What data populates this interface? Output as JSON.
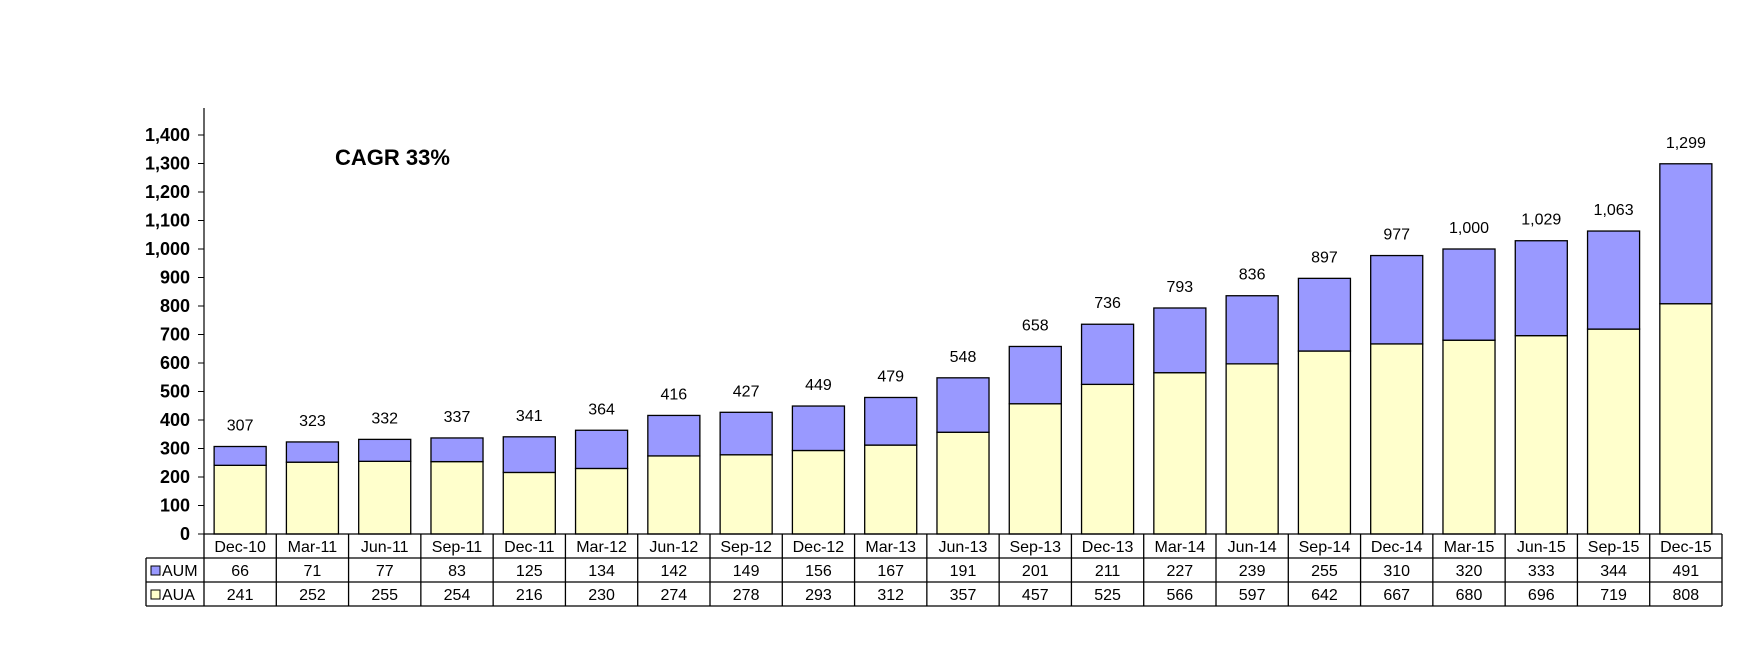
{
  "chart_data": {
    "type": "bar",
    "stacked": true,
    "annotation": "CAGR 33%",
    "categories": [
      "Dec-10",
      "Mar-11",
      "Jun-11",
      "Sep-11",
      "Dec-11",
      "Mar-12",
      "Jun-12",
      "Sep-12",
      "Dec-12",
      "Mar-13",
      "Jun-13",
      "Sep-13",
      "Dec-13",
      "Mar-14",
      "Jun-14",
      "Sep-14",
      "Dec-14",
      "Mar-15",
      "Jun-15",
      "Sep-15",
      "Dec-15"
    ],
    "series": [
      {
        "name": "AUA",
        "color": "#FFFFCC",
        "values": [
          241,
          252,
          255,
          254,
          216,
          230,
          274,
          278,
          293,
          312,
          357,
          457,
          525,
          566,
          597,
          642,
          667,
          680,
          696,
          719,
          808
        ]
      },
      {
        "name": "AUM",
        "color": "#9999FF",
        "values": [
          66,
          71,
          77,
          83,
          125,
          134,
          142,
          149,
          156,
          167,
          191,
          201,
          211,
          227,
          239,
          255,
          310,
          320,
          333,
          344,
          491
        ]
      }
    ],
    "totals": [
      "307",
      "323",
      "332",
      "337",
      "341",
      "364",
      "416",
      "427",
      "449",
      "479",
      "548",
      "658",
      "736",
      "793",
      "836",
      "897",
      "977",
      "1,000",
      "1,029",
      "1,063",
      "1,299"
    ],
    "ytick_labels": [
      "0",
      "100",
      "200",
      "300",
      "400",
      "500",
      "600",
      "700",
      "800",
      "900",
      "1,000",
      "1,100",
      "1,200",
      "1,300",
      "1,400"
    ],
    "ylim": [
      0,
      1400
    ],
    "grid": false,
    "legend": "data-table-bottom"
  }
}
